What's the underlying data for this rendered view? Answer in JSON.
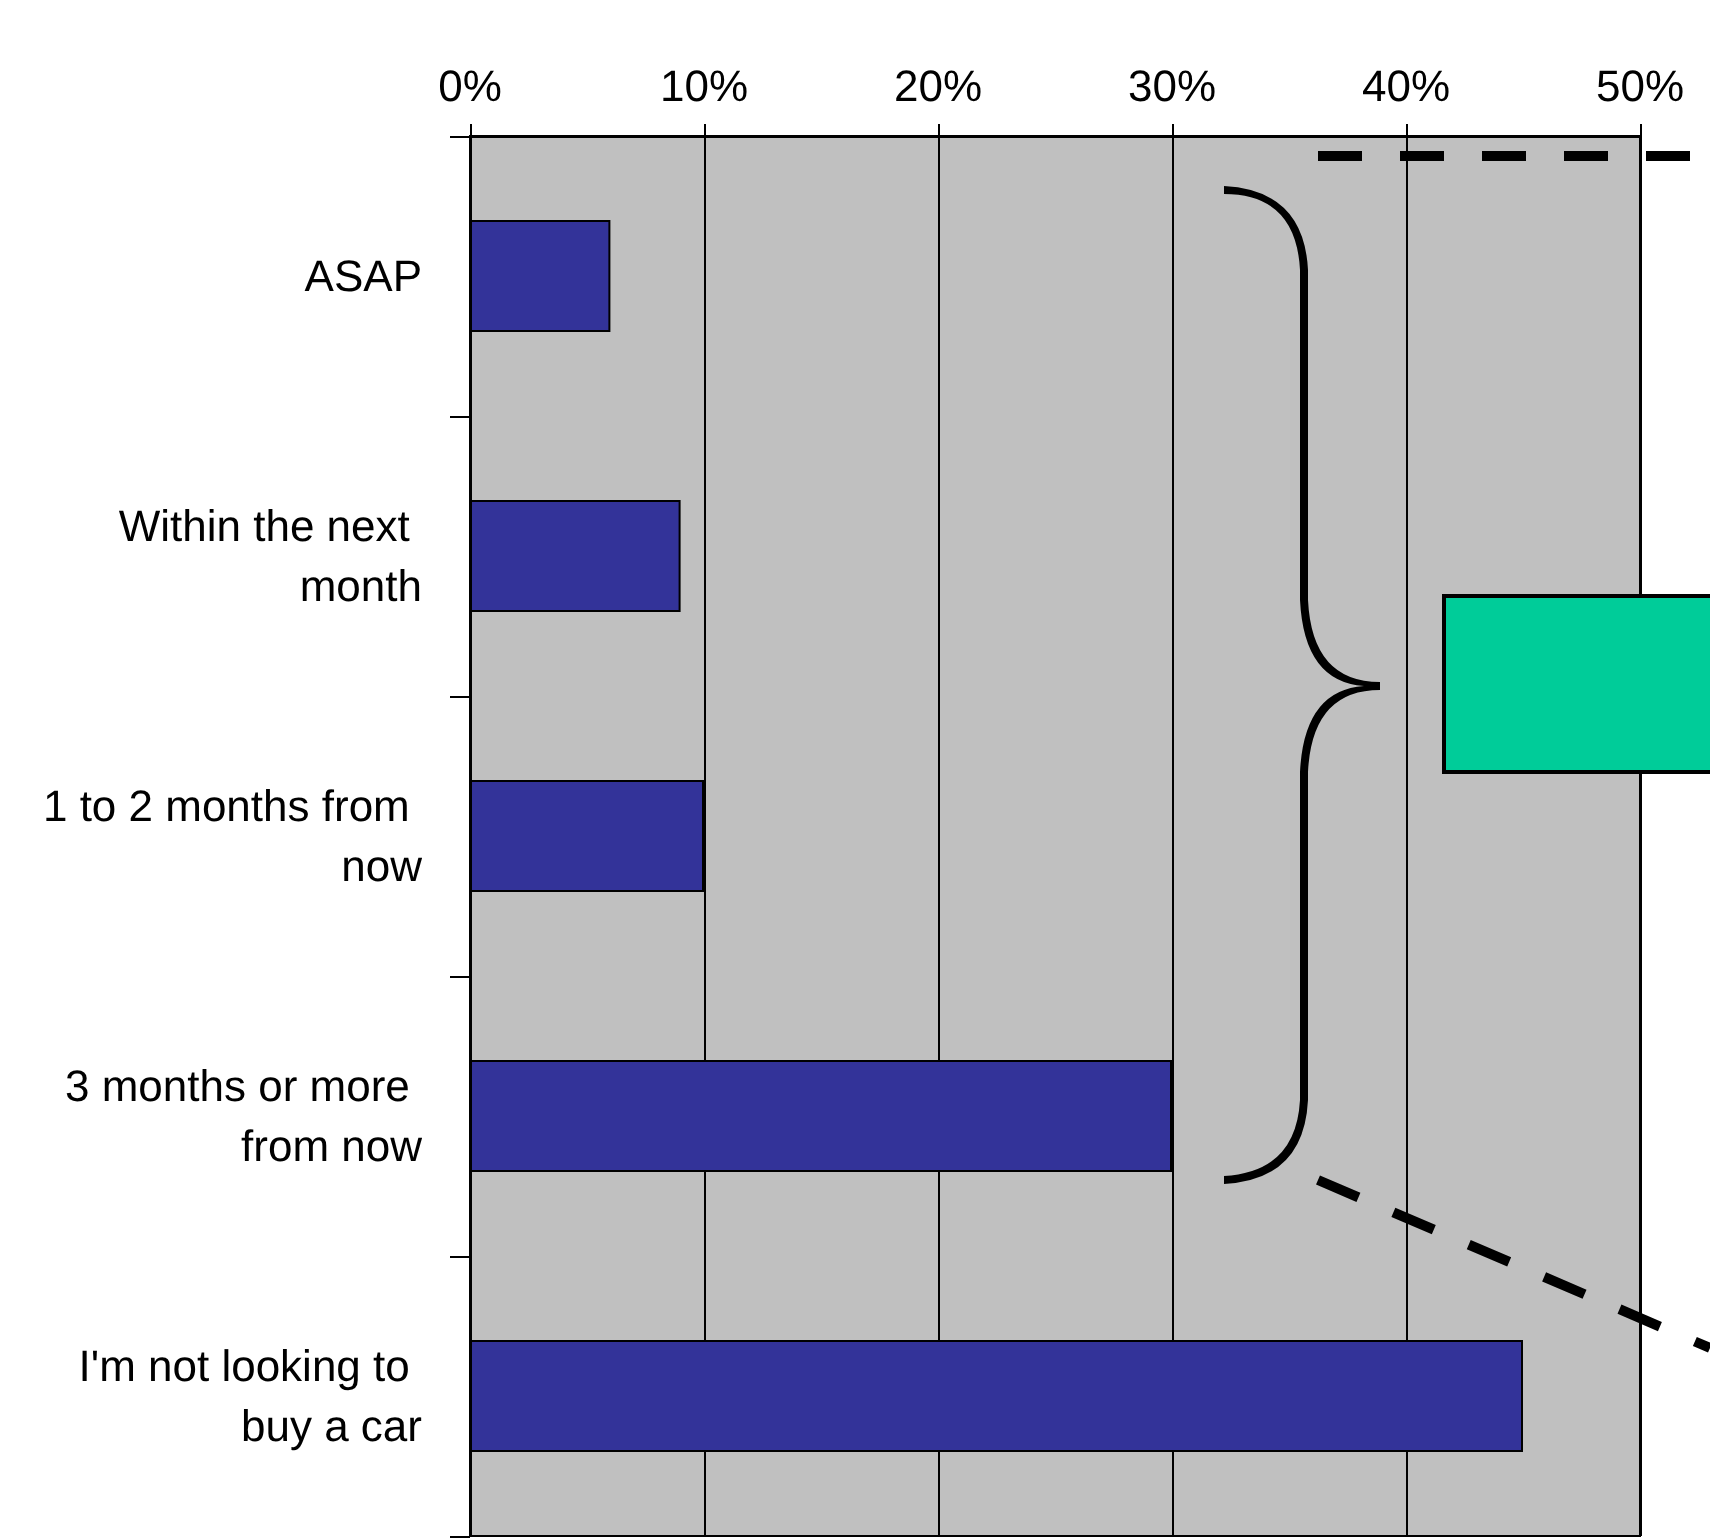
{
  "chart_data": {
    "type": "bar",
    "orientation": "horizontal",
    "categories": [
      "ASAP",
      "Within the next month",
      "1 to 2 months from now",
      "3 months or more from now",
      "I'm not looking to buy a car"
    ],
    "values": [
      6,
      9,
      10,
      30,
      45
    ],
    "color": "#333399",
    "xlim": [
      0,
      50
    ],
    "xticks": [
      {
        "value": 0,
        "label": "0%"
      },
      {
        "value": 10,
        "label": "10%"
      },
      {
        "value": 20,
        "label": "20%"
      },
      {
        "value": 30,
        "label": "30%"
      },
      {
        "value": 40,
        "label": "40%"
      },
      {
        "value": 50,
        "label": "50%"
      }
    ],
    "grid": "x"
  }
}
